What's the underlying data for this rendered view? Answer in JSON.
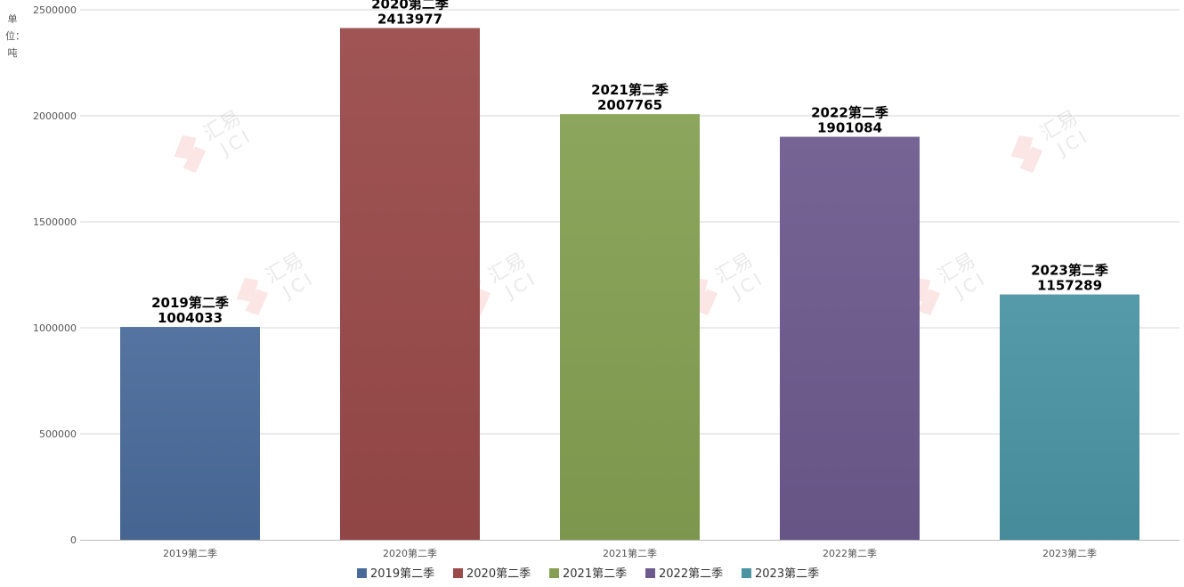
{
  "chart_data": {
    "type": "bar",
    "title": "",
    "xlabel": "",
    "ylabel": "单位：吨",
    "ylim": [
      0,
      2500000
    ],
    "yticks": [
      0,
      500000,
      1000000,
      1500000,
      2000000,
      2500000
    ],
    "grid": true,
    "legend": "bottom",
    "categories": [
      "2019第二季",
      "2020第二季",
      "2021第二季",
      "2022第二季",
      "2023第二季"
    ],
    "values": [
      1004033,
      2413977,
      2007765,
      1901084,
      1157289
    ],
    "colors": [
      "#4a6b9a",
      "#9a4a4a",
      "#85a052",
      "#6d5a8e",
      "#4a94a4"
    ]
  },
  "watermark": {
    "text_cn": "汇易",
    "text_en": "JCI"
  }
}
